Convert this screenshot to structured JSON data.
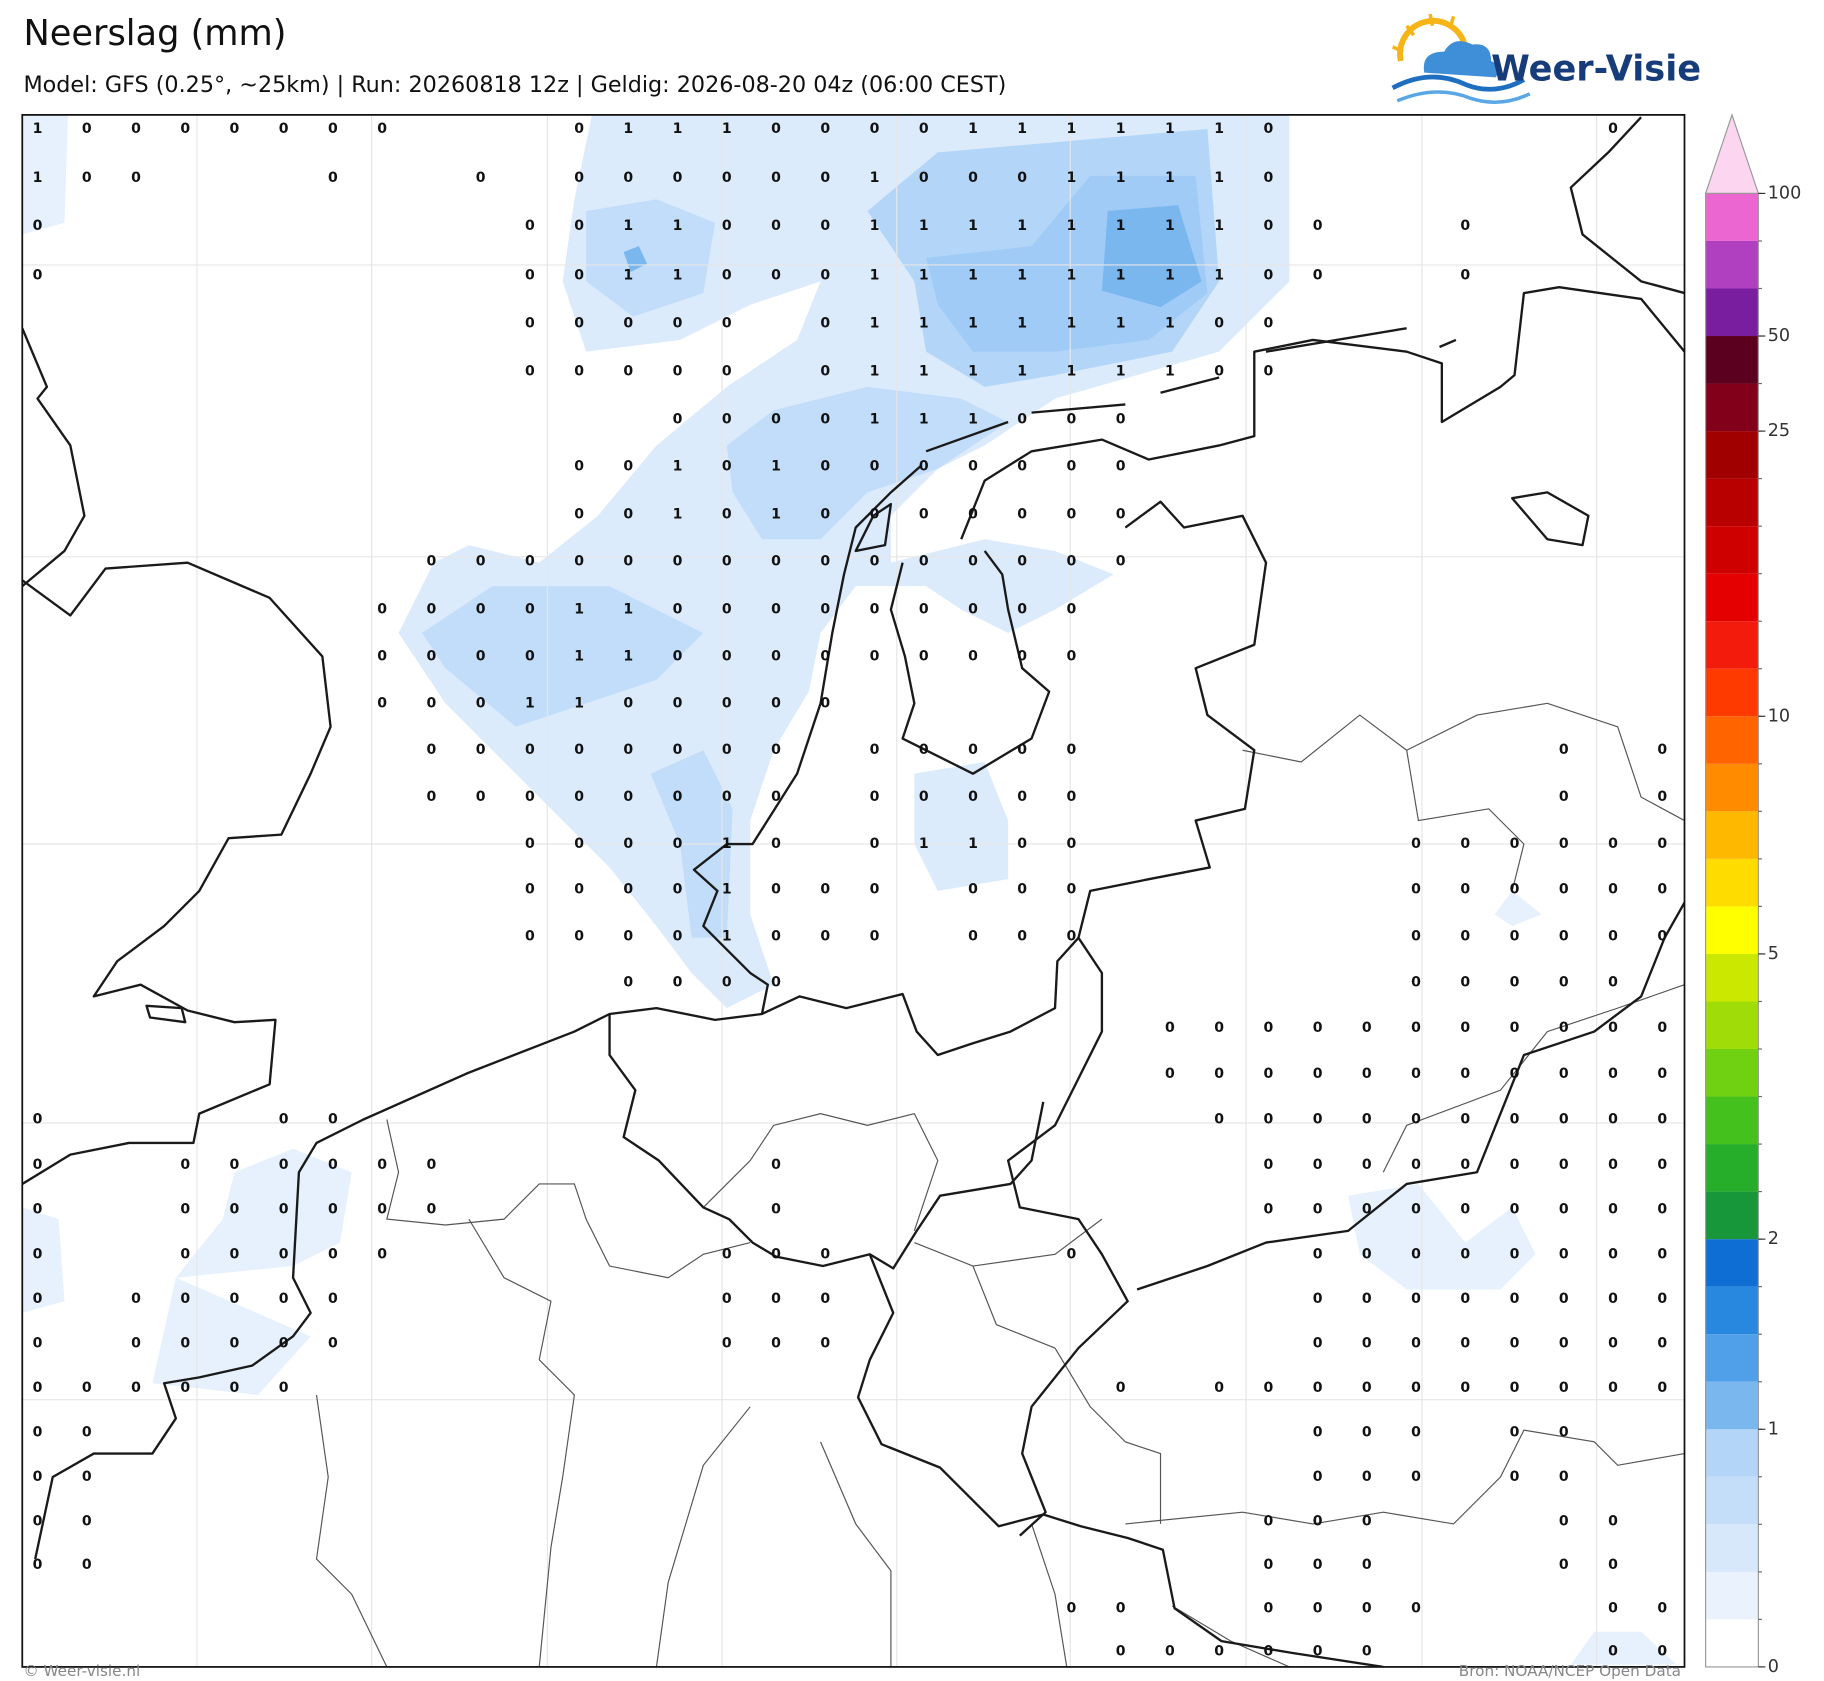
{
  "header": {
    "title": "Neerslag (mm)",
    "subtitle": "Model: GFS (0.25°, ~25km)  |  Run: 20260818 12z  |  Geldig: 2026-08-20 04z (06:00 CEST)"
  },
  "logo": {
    "text": "Weer-Visie"
  },
  "colorbar": {
    "levels": [
      0,
      0.2,
      0.4,
      0.6,
      0.8,
      1,
      1.25,
      1.5,
      1.75,
      2,
      2.5,
      3,
      3.5,
      4,
      4.5,
      5,
      6,
      7,
      8,
      9,
      10,
      12.5,
      15,
      17.5,
      20,
      22.5,
      25,
      37.5,
      50,
      66.7,
      83.3,
      100
    ],
    "colors": [
      "#ffffff",
      "#eaf3fd",
      "#d7e8fb",
      "#c4def9",
      "#b3d6f8",
      "#7ab7ef",
      "#4fa0e8",
      "#2888e0",
      "#0e6ed4",
      "#17963a",
      "#26ad2a",
      "#45c11e",
      "#70d012",
      "#a0dc07",
      "#cbe900",
      "#ffff00",
      "#ffdc00",
      "#ffb800",
      "#ff8c00",
      "#ff6400",
      "#ff3a00",
      "#f21b0c",
      "#e40000",
      "#cf0000",
      "#b80000",
      "#a00000",
      "#82001a",
      "#5c0020",
      "#7a1ea0",
      "#b040c0",
      "#ec66d2"
    ],
    "extend_color": "#fcd6f0",
    "ticks": [
      0,
      1,
      2,
      5,
      10,
      25,
      50,
      100
    ]
  },
  "grid": {
    "rows": [
      [
        1,
        0,
        0,
        0,
        0,
        0,
        0,
        0,
        null,
        null,
        null,
        0,
        1,
        1,
        1,
        0,
        0,
        0,
        0,
        1,
        1,
        1,
        1,
        1,
        1,
        0,
        null,
        null,
        null,
        null,
        null,
        null,
        0,
        null
      ],
      [
        1,
        0,
        0,
        null,
        null,
        null,
        0,
        null,
        null,
        0,
        null,
        0,
        0,
        0,
        0,
        0,
        0,
        1,
        0,
        0,
        0,
        1,
        1,
        1,
        1,
        0,
        null,
        null,
        null,
        null,
        null,
        null,
        null,
        null
      ],
      [
        0,
        null,
        null,
        null,
        null,
        null,
        null,
        null,
        null,
        null,
        0,
        0,
        1,
        1,
        0,
        0,
        0,
        1,
        1,
        1,
        1,
        1,
        1,
        1,
        1,
        0,
        0,
        null,
        null,
        0,
        null,
        null,
        null,
        null
      ],
      [
        0,
        null,
        null,
        null,
        null,
        null,
        null,
        null,
        null,
        null,
        0,
        0,
        1,
        1,
        0,
        0,
        0,
        1,
        1,
        1,
        1,
        1,
        1,
        1,
        1,
        0,
        0,
        null,
        null,
        0,
        null,
        null,
        null,
        null
      ],
      [
        null,
        null,
        null,
        null,
        null,
        null,
        null,
        null,
        null,
        null,
        0,
        0,
        0,
        0,
        0,
        null,
        0,
        1,
        1,
        1,
        1,
        1,
        1,
        1,
        0,
        0,
        null,
        null,
        null,
        null,
        null,
        null,
        null,
        null
      ],
      [
        null,
        null,
        null,
        null,
        null,
        null,
        null,
        null,
        null,
        null,
        0,
        0,
        0,
        0,
        0,
        null,
        0,
        1,
        1,
        1,
        1,
        1,
        1,
        1,
        0,
        0,
        null,
        null,
        null,
        null,
        null,
        null,
        null,
        null
      ],
      [
        null,
        null,
        null,
        null,
        null,
        null,
        null,
        null,
        null,
        null,
        null,
        null,
        null,
        0,
        0,
        0,
        0,
        1,
        1,
        1,
        0,
        0,
        0,
        null,
        null,
        null,
        null,
        null,
        null,
        null,
        null,
        null,
        null,
        null
      ],
      [
        null,
        null,
        null,
        null,
        null,
        null,
        null,
        null,
        null,
        null,
        null,
        0,
        0,
        1,
        0,
        1,
        0,
        0,
        0,
        0,
        0,
        0,
        0,
        null,
        null,
        null,
        null,
        null,
        null,
        null,
        null,
        null,
        null,
        null
      ],
      [
        null,
        null,
        null,
        null,
        null,
        null,
        null,
        null,
        null,
        null,
        null,
        0,
        0,
        1,
        0,
        1,
        0,
        0,
        0,
        0,
        0,
        0,
        0,
        null,
        null,
        null,
        null,
        null,
        null,
        null,
        null,
        null,
        null,
        null
      ],
      [
        null,
        null,
        null,
        null,
        null,
        null,
        null,
        null,
        0,
        0,
        0,
        0,
        0,
        0,
        0,
        0,
        0,
        0,
        0,
        0,
        0,
        0,
        0,
        null,
        null,
        null,
        null,
        null,
        null,
        null,
        null,
        null,
        null,
        null
      ],
      [
        null,
        null,
        null,
        null,
        null,
        null,
        null,
        0,
        0,
        0,
        0,
        1,
        1,
        0,
        0,
        0,
        0,
        0,
        0,
        0,
        0,
        0,
        null,
        null,
        null,
        null,
        null,
        null,
        null,
        null,
        null,
        null,
        null,
        null
      ],
      [
        null,
        null,
        null,
        null,
        null,
        null,
        null,
        0,
        0,
        0,
        0,
        1,
        1,
        0,
        0,
        0,
        0,
        0,
        0,
        0,
        0,
        0,
        null,
        null,
        null,
        null,
        null,
        null,
        null,
        null,
        null,
        null,
        null,
        null
      ],
      [
        null,
        null,
        null,
        null,
        null,
        null,
        null,
        0,
        0,
        0,
        1,
        1,
        0,
        0,
        0,
        0,
        0,
        null,
        null,
        null,
        null,
        null,
        null,
        null,
        null,
        null,
        null,
        null,
        null,
        null,
        null,
        null,
        null,
        null
      ],
      [
        null,
        null,
        null,
        null,
        null,
        null,
        null,
        null,
        0,
        0,
        0,
        0,
        0,
        0,
        0,
        0,
        null,
        0,
        0,
        0,
        0,
        0,
        null,
        null,
        null,
        null,
        null,
        null,
        null,
        null,
        null,
        0,
        null,
        0
      ],
      [
        null,
        null,
        null,
        null,
        null,
        null,
        null,
        null,
        0,
        0,
        0,
        0,
        0,
        0,
        0,
        0,
        null,
        0,
        0,
        0,
        0,
        0,
        null,
        null,
        null,
        null,
        null,
        null,
        null,
        null,
        null,
        0,
        null,
        0
      ],
      [
        null,
        null,
        null,
        null,
        null,
        null,
        null,
        null,
        null,
        null,
        0,
        0,
        0,
        0,
        1,
        0,
        null,
        0,
        1,
        1,
        0,
        0,
        null,
        null,
        null,
        null,
        null,
        null,
        0,
        0,
        0,
        0,
        0,
        0
      ],
      [
        null,
        null,
        null,
        null,
        null,
        null,
        null,
        null,
        null,
        null,
        0,
        0,
        0,
        0,
        1,
        0,
        0,
        0,
        null,
        0,
        0,
        0,
        null,
        null,
        null,
        null,
        null,
        null,
        0,
        0,
        0,
        0,
        0,
        0
      ],
      [
        null,
        null,
        null,
        null,
        null,
        null,
        null,
        null,
        null,
        null,
        0,
        0,
        0,
        0,
        1,
        0,
        0,
        0,
        null,
        0,
        0,
        0,
        null,
        null,
        null,
        null,
        null,
        null,
        0,
        0,
        0,
        0,
        0,
        0
      ],
      [
        null,
        null,
        null,
        null,
        null,
        null,
        null,
        null,
        null,
        null,
        null,
        null,
        0,
        0,
        0,
        0,
        null,
        null,
        null,
        null,
        null,
        null,
        null,
        null,
        null,
        null,
        null,
        null,
        0,
        0,
        0,
        0,
        0,
        null
      ],
      [
        null,
        null,
        null,
        null,
        null,
        null,
        null,
        null,
        null,
        null,
        null,
        null,
        null,
        null,
        null,
        null,
        null,
        null,
        null,
        null,
        null,
        null,
        null,
        0,
        0,
        0,
        0,
        0,
        0,
        0,
        0,
        0,
        0,
        0
      ],
      [
        null,
        null,
        null,
        null,
        null,
        null,
        null,
        null,
        null,
        null,
        null,
        null,
        null,
        null,
        null,
        null,
        null,
        null,
        null,
        null,
        null,
        null,
        null,
        0,
        0,
        0,
        0,
        0,
        0,
        0,
        0,
        0,
        0,
        0
      ],
      [
        0,
        null,
        null,
        null,
        null,
        0,
        0,
        null,
        null,
        null,
        null,
        null,
        null,
        null,
        null,
        null,
        null,
        null,
        null,
        null,
        null,
        null,
        null,
        null,
        0,
        0,
        0,
        0,
        0,
        0,
        0,
        0,
        0,
        0
      ],
      [
        0,
        null,
        null,
        0,
        0,
        0,
        0,
        0,
        0,
        null,
        null,
        null,
        null,
        null,
        null,
        0,
        null,
        null,
        null,
        null,
        null,
        null,
        null,
        null,
        null,
        0,
        0,
        0,
        0,
        0,
        0,
        0,
        0,
        0
      ],
      [
        0,
        null,
        null,
        0,
        0,
        0,
        0,
        0,
        0,
        null,
        null,
        null,
        null,
        null,
        null,
        0,
        null,
        null,
        null,
        null,
        null,
        null,
        null,
        null,
        null,
        0,
        0,
        0,
        0,
        0,
        0,
        0,
        0,
        0
      ],
      [
        0,
        null,
        null,
        0,
        0,
        0,
        0,
        0,
        null,
        null,
        null,
        null,
        null,
        null,
        0,
        0,
        0,
        null,
        null,
        null,
        null,
        0,
        null,
        null,
        null,
        null,
        0,
        0,
        0,
        0,
        0,
        0,
        0,
        0
      ],
      [
        0,
        null,
        0,
        0,
        0,
        0,
        0,
        null,
        null,
        null,
        null,
        null,
        null,
        null,
        0,
        0,
        0,
        null,
        null,
        null,
        null,
        null,
        null,
        null,
        null,
        null,
        0,
        0,
        0,
        0,
        0,
        0,
        0,
        0
      ],
      [
        0,
        null,
        0,
        0,
        0,
        0,
        0,
        null,
        null,
        null,
        null,
        null,
        null,
        null,
        0,
        0,
        0,
        null,
        null,
        null,
        null,
        null,
        null,
        null,
        null,
        null,
        0,
        0,
        0,
        0,
        0,
        0,
        0,
        0
      ],
      [
        0,
        0,
        0,
        0,
        0,
        0,
        null,
        null,
        null,
        null,
        null,
        null,
        null,
        null,
        null,
        null,
        null,
        null,
        null,
        null,
        null,
        null,
        0,
        null,
        0,
        0,
        0,
        0,
        0,
        0,
        0,
        0,
        0,
        0
      ],
      [
        0,
        0,
        null,
        null,
        null,
        null,
        null,
        null,
        null,
        null,
        null,
        null,
        null,
        null,
        null,
        null,
        null,
        null,
        null,
        null,
        null,
        null,
        null,
        null,
        null,
        null,
        0,
        0,
        0,
        null,
        0,
        0,
        null,
        null
      ],
      [
        0,
        0,
        null,
        null,
        null,
        null,
        null,
        null,
        null,
        null,
        null,
        null,
        null,
        null,
        null,
        null,
        null,
        null,
        null,
        null,
        null,
        null,
        null,
        null,
        null,
        null,
        0,
        0,
        0,
        null,
        0,
        0,
        null,
        null
      ],
      [
        0,
        0,
        null,
        null,
        null,
        null,
        null,
        null,
        null,
        null,
        null,
        null,
        null,
        null,
        null,
        null,
        null,
        null,
        null,
        null,
        null,
        null,
        null,
        null,
        null,
        0,
        0,
        0,
        null,
        null,
        null,
        0,
        0,
        null
      ],
      [
        0,
        0,
        null,
        null,
        null,
        null,
        null,
        null,
        null,
        null,
        null,
        null,
        null,
        null,
        null,
        null,
        null,
        null,
        null,
        null,
        null,
        null,
        null,
        null,
        null,
        0,
        0,
        0,
        null,
        null,
        null,
        0,
        0,
        null
      ],
      [
        null,
        null,
        null,
        null,
        null,
        null,
        null,
        null,
        null,
        null,
        null,
        null,
        null,
        null,
        null,
        null,
        null,
        null,
        null,
        null,
        null,
        0,
        0,
        null,
        null,
        0,
        0,
        0,
        0,
        null,
        null,
        null,
        0,
        0
      ],
      [
        null,
        null,
        null,
        null,
        null,
        null,
        null,
        null,
        null,
        null,
        null,
        null,
        null,
        null,
        null,
        null,
        null,
        null,
        null,
        null,
        null,
        null,
        0,
        0,
        0,
        0,
        0,
        0,
        null,
        null,
        null,
        null,
        0,
        0
      ]
    ]
  },
  "footer": {
    "left": "© Weer-visie.nl",
    "right": "Bron: NOAA/NCEP Open Data"
  }
}
